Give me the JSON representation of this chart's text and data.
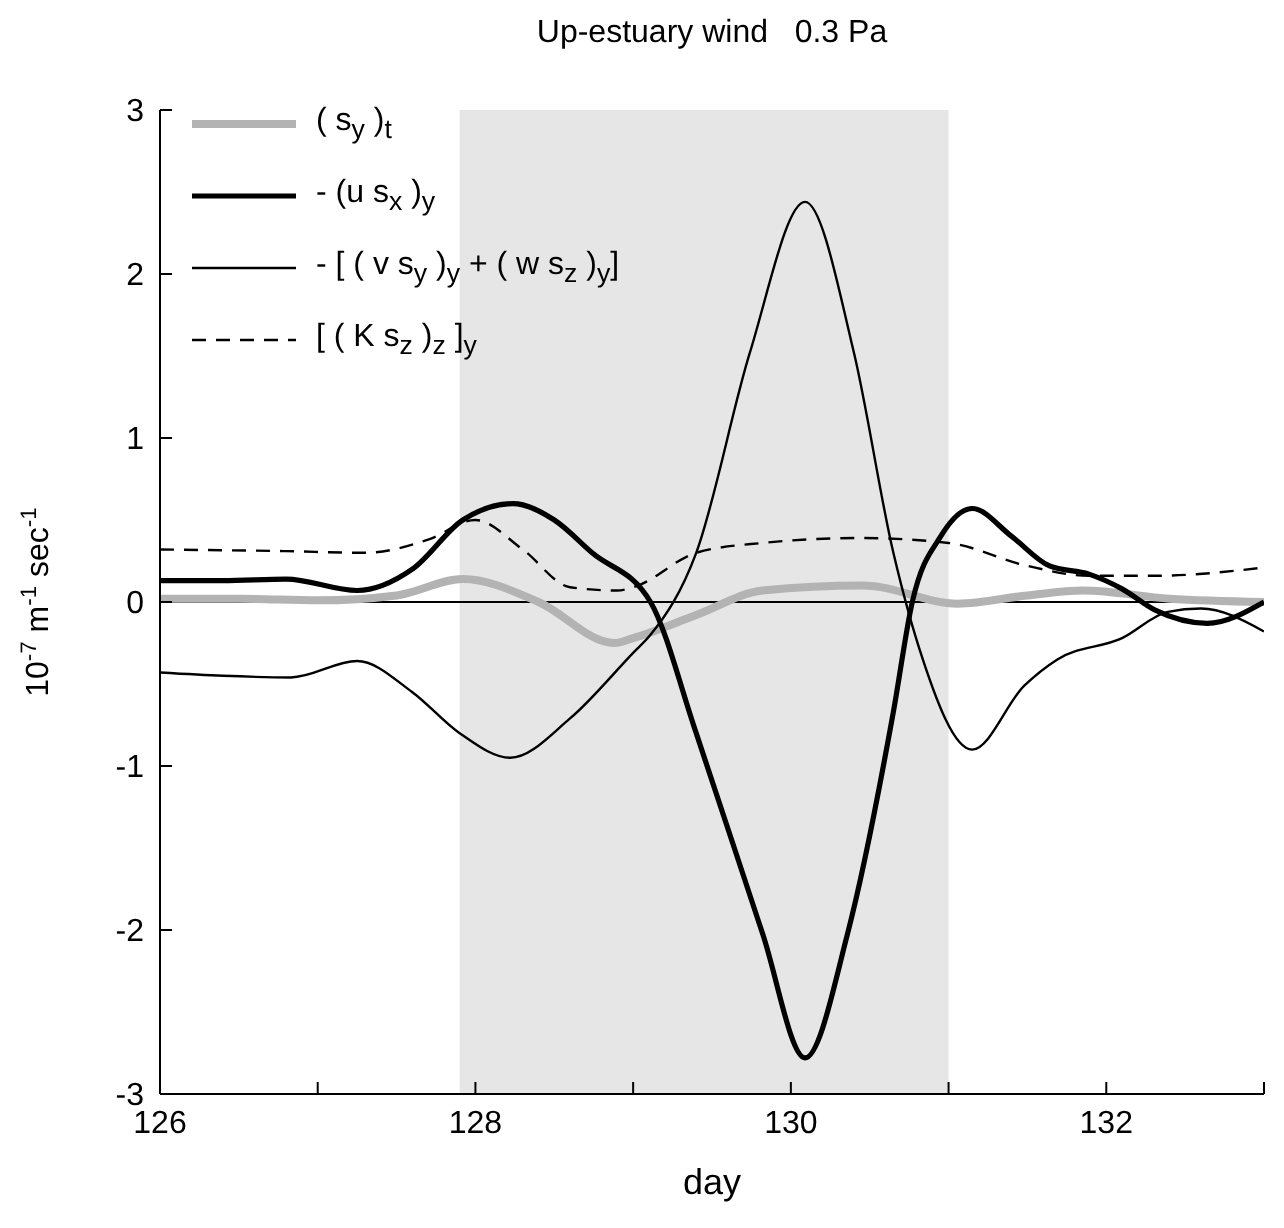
{
  "chart_data": {
    "type": "line",
    "title": "Up-estuary wind   0.3 Pa",
    "xlabel": "day",
    "ylabel": "10$^{-7}$ m$^{-1}$ sec$^{-1}$",
    "xlim": [
      126,
      133
    ],
    "xticks": [
      126,
      {
        "value": 127,
        "label": null
      },
      128,
      {
        "value": 129,
        "label": null
      },
      130,
      {
        "value": 131,
        "label": null
      },
      132,
      {
        "value": 133,
        "label": null
      }
    ],
    "ylim": [
      -3,
      3
    ],
    "yticks": [
      -3,
      -2,
      -1,
      0,
      1,
      2,
      3
    ],
    "grid": false,
    "legend": "top left",
    "marker": "none",
    "bands": [
      {
        "axis": "x",
        "from": 127.9,
        "to": 131.0,
        "color": "#e6e6e6"
      }
    ],
    "ref_lines": [
      {
        "axis": "y",
        "value": 0,
        "color": "#000000"
      }
    ],
    "series": [
      {
        "name": "( s$_{y}$ )$_{t}$",
        "color": "#b3b3b3",
        "line_style": "solid",
        "x": [
          126,
          126.5,
          127,
          127.5,
          127.92,
          128.4,
          128.88,
          129.0,
          129.4,
          129.82,
          130.46,
          131.06,
          131.5,
          131.85,
          132.4,
          133
        ],
        "values": [
          0.02,
          0.02,
          0.01,
          0.04,
          0.14,
          0.0,
          -0.25,
          -0.22,
          -0.08,
          0.07,
          0.1,
          -0.01,
          0.04,
          0.07,
          0.02,
          0.0
        ]
      },
      {
        "name": "- (u s$_{x}$ )$_{y}$",
        "color": "#000000",
        "line_style": "solid",
        "x": [
          126,
          126.4,
          126.8,
          127.25,
          127.6,
          127.92,
          128.24,
          128.5,
          128.74,
          129.11,
          129.4,
          129.82,
          130.09,
          130.36,
          130.65,
          130.77,
          130.95,
          131.15,
          131.4,
          131.64,
          131.89,
          132.1,
          132.31,
          132.64,
          133
        ],
        "values": [
          0.13,
          0.13,
          0.14,
          0.07,
          0.2,
          0.5,
          0.6,
          0.5,
          0.3,
          0.0,
          -0.8,
          -2.02,
          -2.78,
          -2.02,
          -0.67,
          0.0,
          0.4,
          0.57,
          0.4,
          0.22,
          0.17,
          0.08,
          -0.05,
          -0.13,
          0.0
        ]
      },
      {
        "name": "- [ ( v s$_{y}$ )$_{y}$ + ( w s$_{z}$ )$_{y}$]",
        "color": "#000000",
        "line_style": "solid",
        "x": [
          126,
          126.4,
          126.83,
          127.25,
          127.6,
          127.9,
          128.22,
          128.6,
          129.0,
          129.11,
          129.4,
          129.74,
          130.09,
          130.4,
          130.65,
          130.81,
          131.15,
          131.48,
          131.69,
          132.1,
          132.39,
          132.6,
          133
        ],
        "values": [
          -0.43,
          -0.45,
          -0.46,
          -0.36,
          -0.55,
          -0.8,
          -0.95,
          -0.71,
          -0.31,
          -0.2,
          0.3,
          1.52,
          2.44,
          1.52,
          0.3,
          -0.27,
          -0.9,
          -0.51,
          -0.35,
          -0.22,
          -0.06,
          -0.04,
          -0.18
        ]
      },
      {
        "name": "[ ( K s$_{z}$ )$_{z}$ ]$_{y}$",
        "color": "#000000",
        "line_style": "dashed",
        "x": [
          126,
          126.8,
          127.3,
          127.7,
          128.0,
          128.3,
          128.6,
          128.9,
          129.0,
          129.4,
          129.82,
          130.44,
          131.0,
          131.5,
          131.89,
          132.31,
          133
        ],
        "values": [
          0.32,
          0.31,
          0.3,
          0.38,
          0.5,
          0.32,
          0.09,
          0.07,
          0.09,
          0.3,
          0.36,
          0.39,
          0.36,
          0.22,
          0.16,
          0.16,
          0.21
        ]
      }
    ]
  }
}
